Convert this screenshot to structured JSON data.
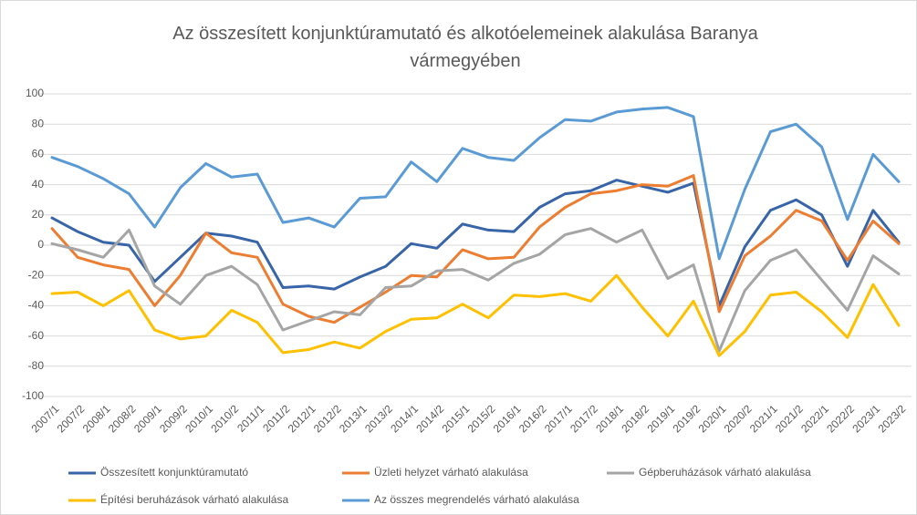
{
  "chart_data": {
    "type": "line",
    "title": "Az összesített konjunktúramutató és alkotóelemeinek alakulása Baranya vármegyében",
    "categories": [
      "2007/1",
      "2007/2",
      "2008/1",
      "2008/2",
      "2009/1",
      "2009/2",
      "2010/1",
      "2010/2",
      "2011/1",
      "2011/2",
      "2012/1",
      "2012/2",
      "2013/1",
      "2013/2",
      "2014/1",
      "2014/2",
      "2015/1",
      "2015/2",
      "2016/1",
      "2016/2",
      "2017/1",
      "2017/2",
      "2018/1",
      "2018/2",
      "2019/1",
      "2019/2",
      "2020/1",
      "2020/2",
      "2021/1",
      "2021/2",
      "2022/1",
      "2022/2",
      "2023/1",
      "2023/2"
    ],
    "series": [
      {
        "name": "Összesített konjunktúramutató",
        "color": "#3865a8",
        "values": [
          18,
          9,
          2,
          0,
          -24,
          -8,
          8,
          6,
          2,
          -28,
          -27,
          -29,
          -21,
          -14,
          1,
          -2,
          14,
          10,
          9,
          25,
          34,
          36,
          43,
          39,
          35,
          41,
          -40,
          -1,
          23,
          30,
          20,
          -14,
          23,
          2
        ]
      },
      {
        "name": "Üzleti helyzet várható alakulása",
        "color": "#ed7d31",
        "values": [
          11,
          -8,
          -13,
          -16,
          -40,
          -20,
          8,
          -5,
          -8,
          -39,
          -47,
          -51,
          -41,
          -31,
          -20,
          -21,
          -3,
          -9,
          -8,
          12,
          25,
          34,
          36,
          40,
          39,
          46,
          -44,
          -7,
          6,
          23,
          16,
          -10,
          16,
          1
        ]
      },
      {
        "name": "Gépberuházások várható alakulása",
        "color": "#a5a5a5",
        "values": [
          1,
          -3,
          -8,
          10,
          -27,
          -39,
          -20,
          -14,
          -26,
          -56,
          -50,
          -44,
          -46,
          -28,
          -27,
          -17,
          -16,
          -23,
          -12,
          -6,
          7,
          11,
          2,
          10,
          -22,
          -13,
          -70,
          -30,
          -10,
          -3,
          -23,
          -43,
          -7,
          -19
        ]
      },
      {
        "name": "Építési beruházások várható alakulása",
        "color": "#ffc000",
        "values": [
          -32,
          -31,
          -40,
          -30,
          -56,
          -62,
          -60,
          -43,
          -51,
          -71,
          -69,
          -64,
          -68,
          -57,
          -49,
          -48,
          -39,
          -48,
          -33,
          -34,
          -32,
          -37,
          -20,
          -41,
          -60,
          -37,
          -73,
          -57,
          -33,
          -31,
          -44,
          -61,
          -26,
          -53
        ]
      },
      {
        "name": "Az összes megrendelés várható alakulása",
        "color": "#5b9bd5",
        "values": [
          58,
          52,
          44,
          34,
          12,
          38,
          54,
          45,
          47,
          15,
          18,
          12,
          31,
          32,
          55,
          42,
          64,
          58,
          56,
          71,
          83,
          82,
          88,
          90,
          91,
          85,
          -9,
          37,
          75,
          80,
          65,
          17,
          60,
          42
        ]
      }
    ],
    "ylim": [
      -100,
      100
    ],
    "yticks": [
      -100,
      -80,
      -60,
      -40,
      -20,
      0,
      20,
      40,
      60,
      80,
      100
    ],
    "grid": true
  }
}
